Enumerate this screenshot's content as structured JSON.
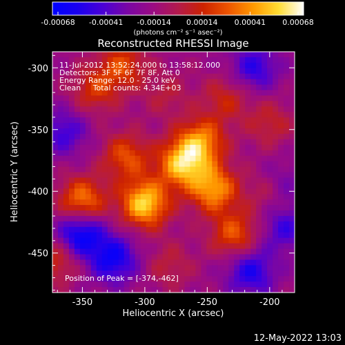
{
  "colorbar": {
    "tick_labels": [
      "-0.00068",
      "-0.00041",
      "-0.00014",
      "0.00014",
      "0.00041",
      "0.00068"
    ],
    "unit_label": "(photons cm⁻² s⁻¹ asec⁻²)",
    "colormap": [
      "#0000ff",
      "#1a00ee",
      "#4a00d6",
      "#7a06a4",
      "#9a0b83",
      "#b31a4c",
      "#cc2200",
      "#ee5500",
      "#ff9900",
      "#ffdd33",
      "#ffffff"
    ]
  },
  "chart_data": {
    "type": "heatmap",
    "title": "Reconstructed RHESSI Image",
    "xlabel": "Heliocentric X (arcsec)",
    "ylabel": "Heliocentric Y (arcsec)",
    "xlim": [
      -374,
      -180
    ],
    "ylim": [
      -482,
      -287
    ],
    "zlim": [
      -0.00068,
      0.00068
    ],
    "x_ticks": [
      "-350",
      "-300",
      "-250",
      "-200"
    ],
    "x_tick_values": [
      -350,
      -300,
      -250,
      -200
    ],
    "y_ticks": [
      "-300",
      "-350",
      "-400",
      "-450"
    ],
    "y_tick_values": [
      -300,
      -350,
      -400,
      -450
    ],
    "annotations": [
      "11-Jul-2012 13:52:24.000 to 13:58:12.000",
      "Detectors: 3F 5F 6F 7F 8F, Att 0",
      "Energy Range: 12.0 - 25.0 keV",
      "Clean     Total counts: 4.34E+03"
    ],
    "peak_label": "Position of Peak = [-374,-462]",
    "peak_position": [
      -374,
      -462
    ],
    "sources": [
      {
        "x": -300,
        "y": -410,
        "value": 0.00068
      },
      {
        "x": -270,
        "y": -378,
        "value": 0.00062
      },
      {
        "x": -245,
        "y": -398,
        "value": 0.00055
      },
      {
        "x": -255,
        "y": -360,
        "value": 0.0005
      },
      {
        "x": -228,
        "y": -435,
        "value": 0.0004
      },
      {
        "x": -315,
        "y": -372,
        "value": 0.00038
      },
      {
        "x": -350,
        "y": -408,
        "value": 0.0005
      },
      {
        "x": -340,
        "y": -318,
        "value": 0.0003
      },
      {
        "x": -318,
        "y": -298,
        "value": 0.00035
      },
      {
        "x": -235,
        "y": -325,
        "value": 0.00025
      },
      {
        "x": -200,
        "y": -345,
        "value": 0.00022
      },
      {
        "x": -283,
        "y": -322,
        "value": 0.00016
      },
      {
        "x": -370,
        "y": -455,
        "value": 0.0003
      },
      {
        "x": -200,
        "y": -400,
        "value": 0.00025
      },
      {
        "x": -280,
        "y": -460,
        "value": 0.00018
      },
      {
        "x": -352,
        "y": -435,
        "value": -0.00055
      },
      {
        "x": -325,
        "y": -455,
        "value": -0.00045
      },
      {
        "x": -215,
        "y": -465,
        "value": -0.0004
      },
      {
        "x": -188,
        "y": -430,
        "value": -0.0003
      },
      {
        "x": -365,
        "y": -352,
        "value": -0.0003
      },
      {
        "x": -212,
        "y": -300,
        "value": -0.00035
      },
      {
        "x": -192,
        "y": -395,
        "value": -0.00025
      }
    ]
  },
  "footer": {
    "timestamp": "12-May-2022 13:03"
  }
}
